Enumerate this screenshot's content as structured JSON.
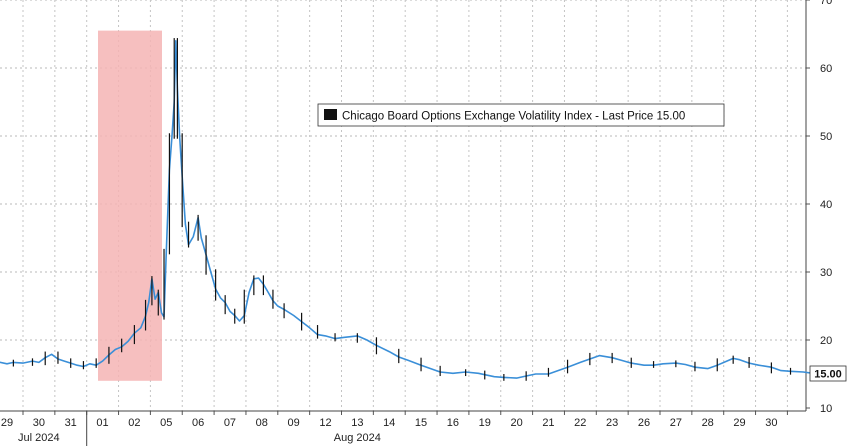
{
  "chart_data": {
    "type": "line",
    "legend": "Chicago Board Options Exchange Volatility Index - Last Price 15.00",
    "last_price_label": "15.00",
    "last_price": 15.0,
    "ylim": [
      10,
      70
    ],
    "y_ticks": [
      10,
      20,
      30,
      40,
      50,
      60,
      70
    ],
    "x_ticks": [
      "29",
      "30",
      "31",
      "01",
      "02",
      "05",
      "06",
      "07",
      "08",
      "09",
      "12",
      "13",
      "14",
      "15",
      "16",
      "19",
      "20",
      "21",
      "22",
      "23",
      "26",
      "27",
      "28",
      "29",
      "30"
    ],
    "month_labels": [
      {
        "label": "Jul 2024",
        "at": "30"
      },
      {
        "label": "Aug 2024",
        "at": "13"
      }
    ],
    "highlight_region": {
      "from": "31-end",
      "to": "02",
      "color": "#f4b4b4"
    },
    "grid": true,
    "colors": {
      "line": "#3a8fd8",
      "candle": "#111111",
      "highlight": "#f4b4b4"
    },
    "series": [
      {
        "values": [
          [
            -0.3,
            16.8
          ],
          [
            0.0,
            16.5
          ],
          [
            0.2,
            16.7
          ],
          [
            0.5,
            16.6
          ],
          [
            0.8,
            16.9
          ],
          [
            1.0,
            16.7
          ],
          [
            1.2,
            17.4
          ],
          [
            1.4,
            17.9
          ],
          [
            1.6,
            17.2
          ],
          [
            1.8,
            16.9
          ],
          [
            2.0,
            16.6
          ],
          [
            2.2,
            16.3
          ],
          [
            2.4,
            16.1
          ],
          [
            2.6,
            16.5
          ],
          [
            2.8,
            16.3
          ],
          [
            3.0,
            16.9
          ],
          [
            3.2,
            17.8
          ],
          [
            3.4,
            18.6
          ],
          [
            3.6,
            19.0
          ],
          [
            3.8,
            19.8
          ],
          [
            4.0,
            21.0
          ],
          [
            4.2,
            21.8
          ],
          [
            4.35,
            23.5
          ],
          [
            4.45,
            25.5
          ],
          [
            4.55,
            29.0
          ],
          [
            4.65,
            26.0
          ],
          [
            4.75,
            27.0
          ],
          [
            4.85,
            24.0
          ],
          [
            4.93,
            23.4
          ],
          [
            5.0,
            33.0
          ],
          [
            5.1,
            45.0
          ],
          [
            5.18,
            50.0
          ],
          [
            5.25,
            55.0
          ],
          [
            5.3,
            64.0
          ],
          [
            5.35,
            57.0
          ],
          [
            5.42,
            50.0
          ],
          [
            5.5,
            44.0
          ],
          [
            5.6,
            37.0
          ],
          [
            5.7,
            34.0
          ],
          [
            5.85,
            35.2
          ],
          [
            6.0,
            38.0
          ],
          [
            6.1,
            35.0
          ],
          [
            6.25,
            32.5
          ],
          [
            6.4,
            30.0
          ],
          [
            6.55,
            27.5
          ],
          [
            6.7,
            26.2
          ],
          [
            6.85,
            25.5
          ],
          [
            7.0,
            24.2
          ],
          [
            7.15,
            23.6
          ],
          [
            7.3,
            22.8
          ],
          [
            7.45,
            23.6
          ],
          [
            7.6,
            27.0
          ],
          [
            7.75,
            29.0
          ],
          [
            7.9,
            29.1
          ],
          [
            8.05,
            28.2
          ],
          [
            8.2,
            27.0
          ],
          [
            8.35,
            25.8
          ],
          [
            8.5,
            25.0
          ],
          [
            8.7,
            24.5
          ],
          [
            9.0,
            23.6
          ],
          [
            9.25,
            22.7
          ],
          [
            9.5,
            21.8
          ],
          [
            9.75,
            20.8
          ],
          [
            10.0,
            20.6
          ],
          [
            10.3,
            20.2
          ],
          [
            10.6,
            20.4
          ],
          [
            11.0,
            20.6
          ],
          [
            11.3,
            20.0
          ],
          [
            11.6,
            19.2
          ],
          [
            12.0,
            18.3
          ],
          [
            12.3,
            17.5
          ],
          [
            12.6,
            17.0
          ],
          [
            13.0,
            16.3
          ],
          [
            13.3,
            15.8
          ],
          [
            13.6,
            15.3
          ],
          [
            14.0,
            15.1
          ],
          [
            14.4,
            15.3
          ],
          [
            14.8,
            15.1
          ],
          [
            15.0,
            14.9
          ],
          [
            15.3,
            14.6
          ],
          [
            15.6,
            14.5
          ],
          [
            16.0,
            14.4
          ],
          [
            16.3,
            14.7
          ],
          [
            16.6,
            15.0
          ],
          [
            17.0,
            15.0
          ],
          [
            17.3,
            15.5
          ],
          [
            17.6,
            16.0
          ],
          [
            18.0,
            16.7
          ],
          [
            18.3,
            17.2
          ],
          [
            18.6,
            17.7
          ],
          [
            19.0,
            17.4
          ],
          [
            19.3,
            17.0
          ],
          [
            19.6,
            16.6
          ],
          [
            20.0,
            16.3
          ],
          [
            20.3,
            16.3
          ],
          [
            20.6,
            16.5
          ],
          [
            21.0,
            16.6
          ],
          [
            21.3,
            16.4
          ],
          [
            21.6,
            16.0
          ],
          [
            22.0,
            15.8
          ],
          [
            22.3,
            16.3
          ],
          [
            22.6,
            16.9
          ],
          [
            22.8,
            17.3
          ],
          [
            23.0,
            17.1
          ],
          [
            23.3,
            16.6
          ],
          [
            23.6,
            16.3
          ],
          [
            24.0,
            16.0
          ],
          [
            24.3,
            15.5
          ],
          [
            24.6,
            15.4
          ],
          [
            25.0,
            15.3
          ],
          [
            25.3,
            15.1
          ],
          [
            25.55,
            15.0
          ]
        ]
      }
    ]
  }
}
